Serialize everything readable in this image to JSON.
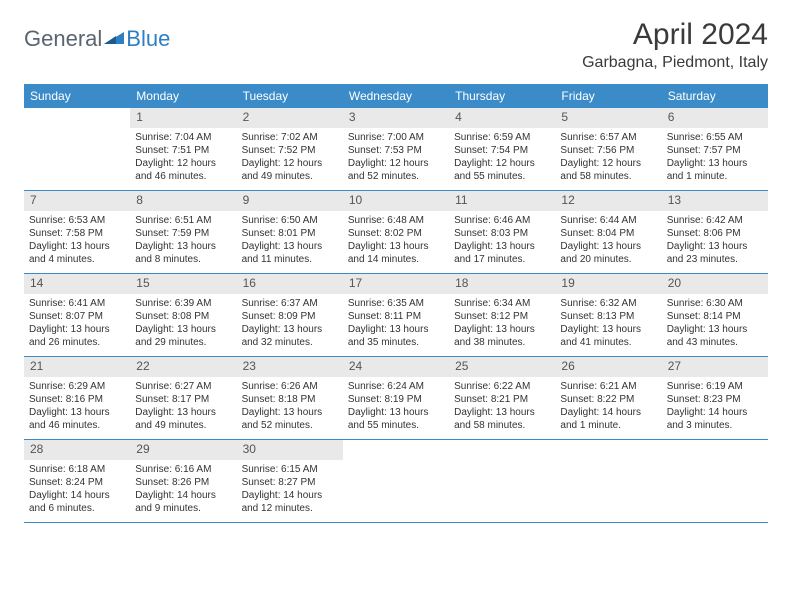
{
  "logo": {
    "general": "General",
    "blue": "Blue"
  },
  "title": "April 2024",
  "location": "Garbagna, Piedmont, Italy",
  "colors": {
    "header_bg": "#3b8bc9",
    "daynum_bg": "#e9e9e9",
    "border": "#3b8bc9",
    "logo_gray": "#5a6570",
    "logo_blue": "#2f7ec2"
  },
  "dow": [
    "Sunday",
    "Monday",
    "Tuesday",
    "Wednesday",
    "Thursday",
    "Friday",
    "Saturday"
  ],
  "weeks": [
    [
      {
        "n": "",
        "empty": true,
        "sunrise": "",
        "sunset": "",
        "day1": "",
        "day2": ""
      },
      {
        "n": "1",
        "sunrise": "Sunrise: 7:04 AM",
        "sunset": "Sunset: 7:51 PM",
        "day1": "Daylight: 12 hours",
        "day2": "and 46 minutes."
      },
      {
        "n": "2",
        "sunrise": "Sunrise: 7:02 AM",
        "sunset": "Sunset: 7:52 PM",
        "day1": "Daylight: 12 hours",
        "day2": "and 49 minutes."
      },
      {
        "n": "3",
        "sunrise": "Sunrise: 7:00 AM",
        "sunset": "Sunset: 7:53 PM",
        "day1": "Daylight: 12 hours",
        "day2": "and 52 minutes."
      },
      {
        "n": "4",
        "sunrise": "Sunrise: 6:59 AM",
        "sunset": "Sunset: 7:54 PM",
        "day1": "Daylight: 12 hours",
        "day2": "and 55 minutes."
      },
      {
        "n": "5",
        "sunrise": "Sunrise: 6:57 AM",
        "sunset": "Sunset: 7:56 PM",
        "day1": "Daylight: 12 hours",
        "day2": "and 58 minutes."
      },
      {
        "n": "6",
        "sunrise": "Sunrise: 6:55 AM",
        "sunset": "Sunset: 7:57 PM",
        "day1": "Daylight: 13 hours",
        "day2": "and 1 minute."
      }
    ],
    [
      {
        "n": "7",
        "sunrise": "Sunrise: 6:53 AM",
        "sunset": "Sunset: 7:58 PM",
        "day1": "Daylight: 13 hours",
        "day2": "and 4 minutes."
      },
      {
        "n": "8",
        "sunrise": "Sunrise: 6:51 AM",
        "sunset": "Sunset: 7:59 PM",
        "day1": "Daylight: 13 hours",
        "day2": "and 8 minutes."
      },
      {
        "n": "9",
        "sunrise": "Sunrise: 6:50 AM",
        "sunset": "Sunset: 8:01 PM",
        "day1": "Daylight: 13 hours",
        "day2": "and 11 minutes."
      },
      {
        "n": "10",
        "sunrise": "Sunrise: 6:48 AM",
        "sunset": "Sunset: 8:02 PM",
        "day1": "Daylight: 13 hours",
        "day2": "and 14 minutes."
      },
      {
        "n": "11",
        "sunrise": "Sunrise: 6:46 AM",
        "sunset": "Sunset: 8:03 PM",
        "day1": "Daylight: 13 hours",
        "day2": "and 17 minutes."
      },
      {
        "n": "12",
        "sunrise": "Sunrise: 6:44 AM",
        "sunset": "Sunset: 8:04 PM",
        "day1": "Daylight: 13 hours",
        "day2": "and 20 minutes."
      },
      {
        "n": "13",
        "sunrise": "Sunrise: 6:42 AM",
        "sunset": "Sunset: 8:06 PM",
        "day1": "Daylight: 13 hours",
        "day2": "and 23 minutes."
      }
    ],
    [
      {
        "n": "14",
        "sunrise": "Sunrise: 6:41 AM",
        "sunset": "Sunset: 8:07 PM",
        "day1": "Daylight: 13 hours",
        "day2": "and 26 minutes."
      },
      {
        "n": "15",
        "sunrise": "Sunrise: 6:39 AM",
        "sunset": "Sunset: 8:08 PM",
        "day1": "Daylight: 13 hours",
        "day2": "and 29 minutes."
      },
      {
        "n": "16",
        "sunrise": "Sunrise: 6:37 AM",
        "sunset": "Sunset: 8:09 PM",
        "day1": "Daylight: 13 hours",
        "day2": "and 32 minutes."
      },
      {
        "n": "17",
        "sunrise": "Sunrise: 6:35 AM",
        "sunset": "Sunset: 8:11 PM",
        "day1": "Daylight: 13 hours",
        "day2": "and 35 minutes."
      },
      {
        "n": "18",
        "sunrise": "Sunrise: 6:34 AM",
        "sunset": "Sunset: 8:12 PM",
        "day1": "Daylight: 13 hours",
        "day2": "and 38 minutes."
      },
      {
        "n": "19",
        "sunrise": "Sunrise: 6:32 AM",
        "sunset": "Sunset: 8:13 PM",
        "day1": "Daylight: 13 hours",
        "day2": "and 41 minutes."
      },
      {
        "n": "20",
        "sunrise": "Sunrise: 6:30 AM",
        "sunset": "Sunset: 8:14 PM",
        "day1": "Daylight: 13 hours",
        "day2": "and 43 minutes."
      }
    ],
    [
      {
        "n": "21",
        "sunrise": "Sunrise: 6:29 AM",
        "sunset": "Sunset: 8:16 PM",
        "day1": "Daylight: 13 hours",
        "day2": "and 46 minutes."
      },
      {
        "n": "22",
        "sunrise": "Sunrise: 6:27 AM",
        "sunset": "Sunset: 8:17 PM",
        "day1": "Daylight: 13 hours",
        "day2": "and 49 minutes."
      },
      {
        "n": "23",
        "sunrise": "Sunrise: 6:26 AM",
        "sunset": "Sunset: 8:18 PM",
        "day1": "Daylight: 13 hours",
        "day2": "and 52 minutes."
      },
      {
        "n": "24",
        "sunrise": "Sunrise: 6:24 AM",
        "sunset": "Sunset: 8:19 PM",
        "day1": "Daylight: 13 hours",
        "day2": "and 55 minutes."
      },
      {
        "n": "25",
        "sunrise": "Sunrise: 6:22 AM",
        "sunset": "Sunset: 8:21 PM",
        "day1": "Daylight: 13 hours",
        "day2": "and 58 minutes."
      },
      {
        "n": "26",
        "sunrise": "Sunrise: 6:21 AM",
        "sunset": "Sunset: 8:22 PM",
        "day1": "Daylight: 14 hours",
        "day2": "and 1 minute."
      },
      {
        "n": "27",
        "sunrise": "Sunrise: 6:19 AM",
        "sunset": "Sunset: 8:23 PM",
        "day1": "Daylight: 14 hours",
        "day2": "and 3 minutes."
      }
    ],
    [
      {
        "n": "28",
        "sunrise": "Sunrise: 6:18 AM",
        "sunset": "Sunset: 8:24 PM",
        "day1": "Daylight: 14 hours",
        "day2": "and 6 minutes."
      },
      {
        "n": "29",
        "sunrise": "Sunrise: 6:16 AM",
        "sunset": "Sunset: 8:26 PM",
        "day1": "Daylight: 14 hours",
        "day2": "and 9 minutes."
      },
      {
        "n": "30",
        "sunrise": "Sunrise: 6:15 AM",
        "sunset": "Sunset: 8:27 PM",
        "day1": "Daylight: 14 hours",
        "day2": "and 12 minutes."
      },
      {
        "n": "",
        "empty": true,
        "sunrise": "",
        "sunset": "",
        "day1": "",
        "day2": ""
      },
      {
        "n": "",
        "empty": true,
        "sunrise": "",
        "sunset": "",
        "day1": "",
        "day2": ""
      },
      {
        "n": "",
        "empty": true,
        "sunrise": "",
        "sunset": "",
        "day1": "",
        "day2": ""
      },
      {
        "n": "",
        "empty": true,
        "sunrise": "",
        "sunset": "",
        "day1": "",
        "day2": ""
      }
    ]
  ]
}
